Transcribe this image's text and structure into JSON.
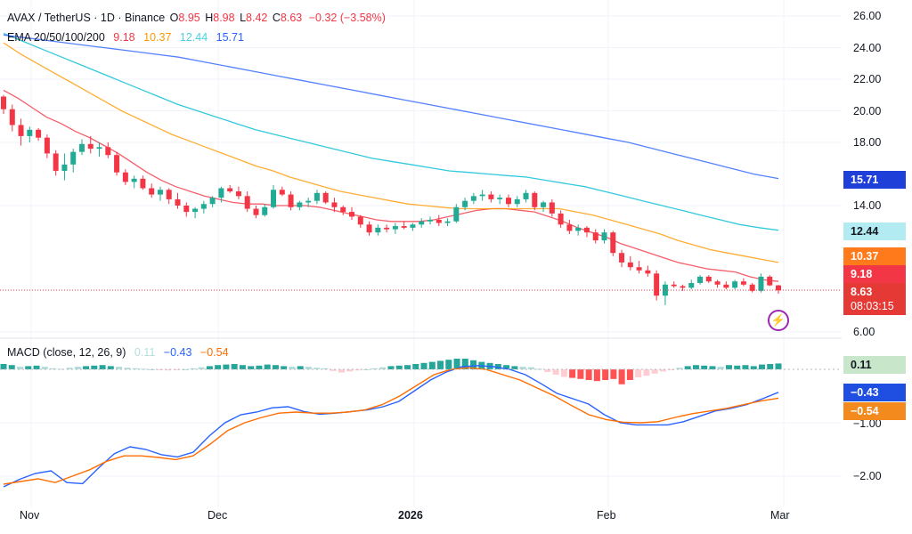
{
  "header": {
    "symbol": "AVAX / TetherUS · 1D · Binance",
    "o_label": "O",
    "open": "8.95",
    "h_label": "H",
    "high": "8.98",
    "l_label": "L",
    "low": "8.42",
    "c_label": "C",
    "close": "8.63",
    "change": "−0.32 (−3.58%)"
  },
  "ema_legend": {
    "label": "EMA 20/50/100/200",
    "v20": "9.18",
    "v50": "10.37",
    "v100": "12.44",
    "v200": "15.71"
  },
  "macd_legend": {
    "label": "MACD (close, 12, 26, 9)",
    "hist": "0.11",
    "macd": "−0.43",
    "signal": "−0.54"
  },
  "badges": {
    "ema200": "15.71",
    "ema100": "12.44",
    "ema50": "10.37",
    "ema20": "9.18",
    "price": "8.63",
    "countdown": "08:03:15",
    "macd_hist": "0.11",
    "macd_line": "−0.43",
    "macd_signal": "−0.54"
  },
  "colors": {
    "up": "#22AB94",
    "down": "#F23645",
    "ema20": "#F23645",
    "ema50": "#FF9800",
    "ema100": "#00BCD4",
    "ema200": "#2962FF",
    "macd": "#2962FF",
    "signal": "#FF6D00"
  },
  "icons": {
    "alert": "lightning-bolt-icon"
  },
  "chart_data": [
    {
      "type": "candlestick",
      "title": "AVAX / TetherUS · 1D · Binance",
      "y_ticks": [
        "26.00",
        "24.00",
        "22.00",
        "20.00",
        "18.00",
        "14.00",
        "6.00"
      ],
      "x_ticks": [
        "Nov",
        "Dec",
        "2026",
        "Feb",
        "Mar"
      ],
      "ylim": [
        6,
        26.6
      ],
      "ohlc": [
        [
          20.9,
          21.0,
          19.8,
          20.1
        ],
        [
          20.1,
          20.4,
          18.7,
          19.1
        ],
        [
          19.1,
          19.5,
          17.8,
          18.4
        ],
        [
          18.4,
          19.0,
          18.0,
          18.8
        ],
        [
          18.8,
          18.9,
          18.1,
          18.3
        ],
        [
          18.3,
          18.5,
          17.0,
          17.3
        ],
        [
          17.3,
          17.5,
          15.9,
          16.2
        ],
        [
          16.2,
          17.3,
          15.6,
          16.6
        ],
        [
          16.6,
          17.6,
          16.1,
          17.4
        ],
        [
          17.4,
          18.2,
          17.2,
          17.9
        ],
        [
          17.9,
          18.4,
          17.3,
          17.6
        ],
        [
          17.6,
          18.0,
          17.1,
          17.7
        ],
        [
          17.7,
          18.0,
          17.0,
          17.2
        ],
        [
          17.2,
          17.4,
          15.9,
          16.1
        ],
        [
          16.1,
          16.3,
          15.3,
          15.5
        ],
        [
          15.5,
          15.9,
          15.1,
          15.7
        ],
        [
          15.7,
          15.9,
          15.0,
          15.1
        ],
        [
          15.1,
          15.4,
          14.5,
          14.7
        ],
        [
          14.7,
          15.2,
          14.3,
          15.0
        ],
        [
          15.0,
          15.1,
          14.1,
          14.4
        ],
        [
          14.4,
          14.8,
          13.8,
          14.0
        ],
        [
          14.0,
          14.2,
          13.3,
          13.6
        ],
        [
          13.6,
          13.9,
          13.2,
          13.8
        ],
        [
          13.8,
          14.3,
          13.5,
          14.1
        ],
        [
          14.1,
          14.6,
          13.9,
          14.5
        ],
        [
          14.5,
          15.2,
          14.2,
          15.1
        ],
        [
          15.1,
          15.3,
          14.8,
          14.9
        ],
        [
          14.9,
          15.2,
          14.4,
          14.6
        ],
        [
          14.6,
          14.9,
          13.6,
          13.8
        ],
        [
          13.8,
          14.0,
          13.2,
          13.4
        ],
        [
          13.4,
          14.1,
          13.3,
          13.9
        ],
        [
          13.9,
          15.3,
          13.8,
          15.0
        ],
        [
          15.0,
          15.2,
          14.6,
          14.7
        ],
        [
          14.7,
          14.9,
          13.7,
          13.9
        ],
        [
          13.9,
          14.3,
          13.7,
          14.2
        ],
        [
          14.2,
          14.5,
          13.9,
          14.3
        ],
        [
          14.3,
          15.0,
          14.1,
          14.8
        ],
        [
          14.8,
          14.9,
          14.1,
          14.2
        ],
        [
          14.2,
          14.5,
          13.6,
          13.9
        ],
        [
          13.9,
          14.0,
          13.4,
          13.6
        ],
        [
          13.6,
          13.9,
          13.1,
          13.3
        ],
        [
          13.3,
          13.4,
          12.6,
          12.8
        ],
        [
          12.8,
          13.0,
          12.1,
          12.3
        ],
        [
          12.3,
          12.8,
          12.1,
          12.6
        ],
        [
          12.6,
          12.8,
          12.3,
          12.5
        ],
        [
          12.5,
          12.9,
          12.2,
          12.7
        ],
        [
          12.7,
          13.0,
          12.5,
          12.6
        ],
        [
          12.6,
          12.9,
          12.4,
          12.8
        ],
        [
          12.8,
          13.2,
          12.6,
          13.0
        ],
        [
          13.0,
          13.3,
          12.8,
          13.1
        ],
        [
          13.1,
          13.4,
          12.7,
          12.9
        ],
        [
          12.9,
          13.2,
          12.7,
          13.0
        ],
        [
          13.0,
          14.1,
          12.9,
          13.9
        ],
        [
          13.9,
          14.5,
          13.7,
          14.3
        ],
        [
          14.3,
          14.8,
          14.1,
          14.6
        ],
        [
          14.6,
          15.0,
          14.3,
          14.7
        ],
        [
          14.7,
          14.9,
          14.2,
          14.4
        ],
        [
          14.4,
          14.7,
          14.1,
          14.5
        ],
        [
          14.5,
          14.7,
          13.9,
          14.1
        ],
        [
          14.1,
          14.6,
          13.9,
          14.4
        ],
        [
          14.4,
          15.0,
          14.2,
          14.8
        ],
        [
          14.8,
          14.9,
          13.7,
          13.9
        ],
        [
          13.9,
          14.3,
          13.6,
          14.2
        ],
        [
          14.2,
          14.4,
          13.3,
          13.5
        ],
        [
          13.5,
          13.7,
          12.6,
          12.8
        ],
        [
          12.8,
          13.1,
          12.2,
          12.4
        ],
        [
          12.4,
          12.8,
          12.1,
          12.6
        ],
        [
          12.6,
          12.7,
          12.0,
          12.3
        ],
        [
          12.3,
          12.5,
          11.6,
          11.8
        ],
        [
          11.8,
          12.5,
          11.6,
          12.3
        ],
        [
          12.3,
          12.4,
          10.8,
          11.0
        ],
        [
          11.0,
          11.2,
          10.1,
          10.4
        ],
        [
          10.4,
          10.8,
          9.9,
          10.1
        ],
        [
          10.1,
          10.5,
          9.7,
          9.9
        ],
        [
          9.9,
          10.2,
          9.5,
          9.7
        ],
        [
          9.7,
          9.9,
          8.0,
          8.3
        ],
        [
          8.3,
          9.2,
          7.7,
          9.0
        ],
        [
          9.0,
          9.2,
          8.8,
          8.9
        ],
        [
          8.9,
          9.0,
          8.6,
          8.8
        ],
        [
          8.8,
          9.3,
          8.7,
          9.1
        ],
        [
          9.1,
          9.6,
          9.0,
          9.5
        ],
        [
          9.5,
          9.6,
          9.1,
          9.2
        ],
        [
          9.2,
          9.3,
          8.8,
          9.0
        ],
        [
          9.0,
          9.2,
          8.7,
          8.8
        ],
        [
          8.8,
          9.3,
          8.7,
          9.2
        ],
        [
          9.2,
          9.4,
          8.9,
          9.0
        ],
        [
          9.0,
          9.1,
          8.5,
          8.6
        ],
        [
          8.6,
          9.7,
          8.5,
          9.5
        ],
        [
          9.5,
          9.6,
          8.9,
          8.95
        ],
        [
          8.95,
          8.98,
          8.42,
          8.63
        ]
      ],
      "series": [
        {
          "name": "EMA 20",
          "values": [
            21.3,
            20.8,
            20.2,
            19.6,
            19.2,
            18.7,
            18.3,
            17.8,
            17.3,
            16.7,
            16.1,
            15.6,
            15.2,
            14.9,
            14.6,
            14.4,
            14.2,
            14.1,
            14.1,
            14.0,
            14.0,
            14.0,
            13.9,
            13.7,
            13.5,
            13.3,
            13.1,
            13.0,
            13.0,
            13.0,
            13.1,
            13.3,
            13.5,
            13.7,
            13.8,
            13.8,
            13.7,
            13.6,
            13.3,
            13.0,
            12.6,
            12.3,
            12.0,
            11.6,
            11.3,
            11.0,
            10.7,
            10.4,
            10.2,
            10.0,
            9.9,
            9.8,
            9.5,
            9.3,
            9.2
          ]
        },
        {
          "name": "EMA 50",
          "values": [
            24.3,
            23.6,
            23.0,
            22.4,
            21.8,
            21.2,
            20.6,
            20.0,
            19.5,
            19.0,
            18.5,
            18.1,
            17.7,
            17.3,
            16.9,
            16.5,
            16.2,
            15.8,
            15.5,
            15.2,
            14.9,
            14.7,
            14.5,
            14.3,
            14.1,
            14.0,
            13.9,
            13.8,
            13.8,
            13.8,
            13.8,
            13.8,
            13.8,
            13.8,
            13.6,
            13.4,
            13.1,
            12.8,
            12.5,
            12.2,
            11.8,
            11.5,
            11.2,
            11.0,
            10.8,
            10.6,
            10.4
          ]
        },
        {
          "name": "EMA 100",
          "values": [
            24.9,
            24.4,
            23.9,
            23.4,
            22.9,
            22.4,
            21.9,
            21.4,
            20.9,
            20.4,
            20.0,
            19.6,
            19.2,
            18.8,
            18.5,
            18.2,
            17.9,
            17.6,
            17.3,
            17.0,
            16.8,
            16.6,
            16.4,
            16.2,
            16.1,
            16.0,
            15.9,
            15.8,
            15.6,
            15.4,
            15.2,
            14.9,
            14.6,
            14.3,
            14.0,
            13.7,
            13.4,
            13.1,
            12.8,
            12.6,
            12.44
          ]
        },
        {
          "name": "EMA 200",
          "values": [
            24.8,
            24.6,
            24.4,
            24.2,
            24.0,
            23.8,
            23.6,
            23.4,
            23.1,
            22.8,
            22.5,
            22.2,
            21.9,
            21.6,
            21.3,
            21.0,
            20.7,
            20.4,
            20.1,
            19.8,
            19.5,
            19.2,
            18.9,
            18.6,
            18.3,
            18.0,
            17.6,
            17.2,
            16.8,
            16.4,
            16.0,
            15.71
          ]
        }
      ]
    },
    {
      "type": "macd",
      "title": "MACD (close, 12, 26, 9)",
      "y_ticks": [
        "−1.00",
        "−2.00"
      ],
      "hist": [
        0.1,
        0.08,
        0.05,
        0.06,
        0.07,
        0.05,
        0.02,
        0.01,
        0.03,
        0.05,
        0.06,
        0.07,
        0.08,
        0.06,
        0.05,
        0.03,
        0.02,
        0.01,
        0.0,
        -0.01,
        -0.02,
        -0.01,
        0.0,
        0.02,
        0.04,
        0.06,
        0.08,
        0.09,
        0.1,
        0.08,
        0.06,
        0.07,
        0.09,
        0.08,
        0.06,
        0.05,
        0.06,
        0.05,
        0.03,
        0.02,
        -0.03,
        -0.06,
        -0.04,
        -0.02,
        0.0,
        0.02,
        0.04,
        0.06,
        0.07,
        0.08,
        0.1,
        0.12,
        0.14,
        0.16,
        0.18,
        0.2,
        0.2,
        0.17,
        0.14,
        0.12,
        0.1,
        0.08,
        0.06,
        0.05,
        0.04,
        0.01,
        -0.05,
        -0.1,
        -0.14,
        -0.16,
        -0.18,
        -0.2,
        -0.22,
        -0.2,
        -0.18,
        -0.28,
        -0.2,
        -0.15,
        -0.12,
        -0.08,
        -0.04,
        -0.01,
        0.03,
        0.06,
        0.08,
        0.07,
        0.06,
        0.05,
        0.08,
        0.07,
        0.08,
        0.06,
        0.09,
        0.1,
        0.11
      ],
      "macd": [
        -2.2,
        -2.06,
        -1.95,
        -1.9,
        -2.12,
        -2.14,
        -1.85,
        -1.58,
        -1.45,
        -1.5,
        -1.6,
        -1.64,
        -1.55,
        -1.25,
        -1.0,
        -0.85,
        -0.8,
        -0.72,
        -0.7,
        -0.79,
        -0.84,
        -0.82,
        -0.79,
        -0.76,
        -0.7,
        -0.6,
        -0.4,
        -0.2,
        -0.05,
        0.05,
        0.07,
        0.05,
        0.0,
        -0.1,
        -0.27,
        -0.45,
        -0.55,
        -0.65,
        -0.85,
        -1.0,
        -1.04,
        -1.04,
        -1.04,
        -0.98,
        -0.88,
        -0.78,
        -0.73,
        -0.66,
        -0.55,
        -0.43
      ],
      "signal": [
        -2.15,
        -2.1,
        -2.05,
        -2.12,
        -2.0,
        -1.88,
        -1.72,
        -1.62,
        -1.62,
        -1.65,
        -1.69,
        -1.62,
        -1.4,
        -1.15,
        -1.0,
        -0.9,
        -0.82,
        -0.8,
        -0.82,
        -0.82,
        -0.8,
        -0.76,
        -0.66,
        -0.5,
        -0.3,
        -0.1,
        0.0,
        0.03,
        0.0,
        -0.1,
        -0.2,
        -0.35,
        -0.5,
        -0.68,
        -0.85,
        -0.94,
        -0.99,
        -1.0,
        -0.98,
        -0.9,
        -0.83,
        -0.78,
        -0.73,
        -0.66,
        -0.59,
        -0.54
      ]
    }
  ]
}
